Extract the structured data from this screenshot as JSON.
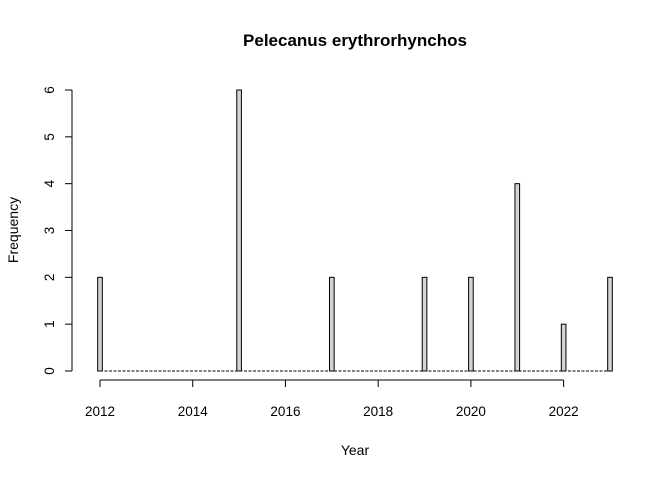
{
  "chart_data": {
    "type": "bar",
    "title": "Pelecanus erythrorhynchos",
    "xlabel": "Year",
    "ylabel": "Frequency",
    "xlim": [
      2012,
      2023
    ],
    "ylim": [
      0,
      6
    ],
    "x_ticks": [
      2012,
      2014,
      2016,
      2018,
      2020,
      2022
    ],
    "y_ticks": [
      0,
      1,
      2,
      3,
      4,
      5,
      6
    ],
    "bin_width": 0.1,
    "points": [
      {
        "x": 2012,
        "y": 2
      },
      {
        "x": 2015,
        "y": 6
      },
      {
        "x": 2017,
        "y": 2
      },
      {
        "x": 2019,
        "y": 2
      },
      {
        "x": 2020,
        "y": 2
      },
      {
        "x": 2021,
        "y": 4
      },
      {
        "x": 2022,
        "y": 1
      },
      {
        "x": 2023,
        "y": 2
      }
    ],
    "bar_fill": "#d3d3d3",
    "grid": false,
    "legend": "none"
  }
}
